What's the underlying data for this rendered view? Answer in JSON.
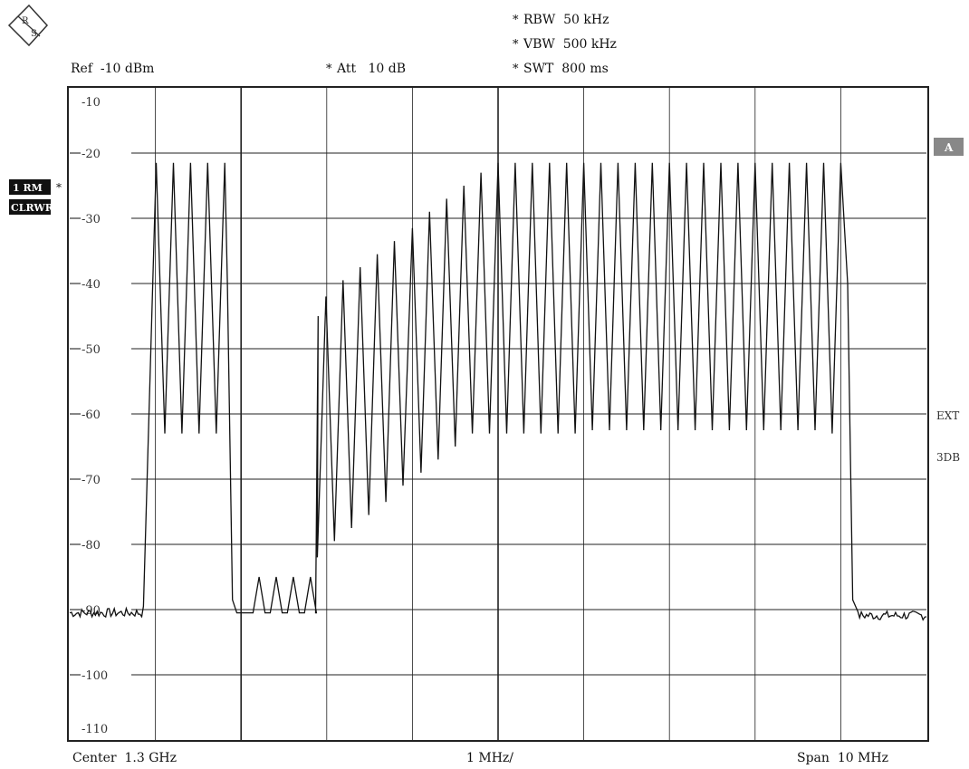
{
  "header": {
    "logo_text": "R&S",
    "ref": "Ref  -10 dBm",
    "att_star": "*",
    "att": "Att   10 dB",
    "rbw_star": "*",
    "rbw": "RBW  50 kHz",
    "vbw_star": "*",
    "vbw": "VBW  500 kHz",
    "swt_star": "*",
    "swt": "SWT  800 ms"
  },
  "left_labels": {
    "trace_mode": "1 RM",
    "trace_star": "*",
    "clear_write": "CLRWR"
  },
  "right_labels": {
    "a_badge": "A",
    "ext": "EXT",
    "db3": "3DB"
  },
  "footer": {
    "center": "Center  1.3 GHz",
    "per_div": "1 MHz/",
    "span": "Span  10 MHz"
  },
  "colors": {
    "trace": "#111111",
    "grid": "#222222",
    "badge_bg": "#888888",
    "label_bg": "#111111"
  },
  "chart_data": {
    "type": "line",
    "title": "",
    "xlabel": "",
    "ylabel": "",
    "x_unit": "MHz",
    "y_unit": "dBm",
    "xlim": [
      1295,
      1305
    ],
    "ylim": [
      -110,
      -10
    ],
    "y_ticks": [
      -10,
      -20,
      -30,
      -40,
      -50,
      -60,
      -70,
      -80,
      -90,
      -100,
      -110
    ],
    "grid": true,
    "series": [
      {
        "mode": "notch_comb",
        "peak_freqs_mhz": [
          1296.01,
          1296.21,
          1296.41,
          1296.61,
          1296.81,
          1297.99,
          1298.19,
          1298.39,
          1298.59,
          1298.79,
          1299.0,
          1299.2,
          1299.4,
          1299.6,
          1299.8,
          1300.0,
          1300.2,
          1300.4,
          1300.6,
          1300.8,
          1301.0,
          1301.2,
          1301.4,
          1301.6,
          1301.8,
          1302.0,
          1302.2,
          1302.4,
          1302.6,
          1302.8,
          1303.0,
          1303.2,
          1303.4,
          1303.6,
          1303.8,
          1304.0
        ],
        "peak_dbm": [
          -21.5,
          -21.5,
          -21.5,
          -21.5,
          -21.5,
          -42,
          -39.5,
          -37.5,
          -35.5,
          -33.5,
          -31.5,
          -29,
          -27,
          -25,
          -23,
          -21.5,
          -21.5,
          -21.5,
          -21.5,
          -21.5,
          -21.5,
          -21.5,
          -21.5,
          -21.5,
          -21.5,
          -21.5,
          -21.5,
          -21.5,
          -21.5,
          -21.5,
          -21.5,
          -21.5,
          -21.5,
          -21.5,
          -21.5,
          -21.5
        ],
        "notch_freqs_mhz": [
          1296.11,
          1296.31,
          1296.51,
          1296.71,
          1297.89,
          1298.09,
          1298.29,
          1298.49,
          1298.69,
          1298.89,
          1299.1,
          1299.3,
          1299.5,
          1299.7,
          1299.9,
          1300.1,
          1300.3,
          1300.5,
          1300.7,
          1300.9,
          1301.1,
          1301.3,
          1301.5,
          1301.7,
          1301.9,
          1302.1,
          1302.3,
          1302.5,
          1302.7,
          1302.9,
          1303.1,
          1303.3,
          1303.5,
          1303.7,
          1303.9
        ],
        "notch_dbm": [
          -63,
          -63,
          -63,
          -63,
          -82,
          -79.5,
          -77.5,
          -75.5,
          -73.5,
          -71,
          -69,
          -67,
          -65,
          -63,
          -63,
          -63,
          -63,
          -63,
          -63,
          -63,
          -62.5,
          -62.5,
          -62.5,
          -62.5,
          -62.5,
          -62.5,
          -62.5,
          -62.5,
          -62.5,
          -62.5,
          -62.5,
          -62.5,
          -62.5,
          -62.5,
          -63
        ],
        "low_peaks_mhz": [
          1297.21,
          1297.41,
          1297.61,
          1297.81
        ],
        "low_peaks_dbm": [
          -85,
          -85,
          -85,
          -85
        ],
        "noise_floor_dbm": -90.5,
        "bands_mhz": [
          [
            1295.9,
            1296.9
          ],
          [
            1297.92,
            1304.1
          ]
        ]
      }
    ]
  }
}
